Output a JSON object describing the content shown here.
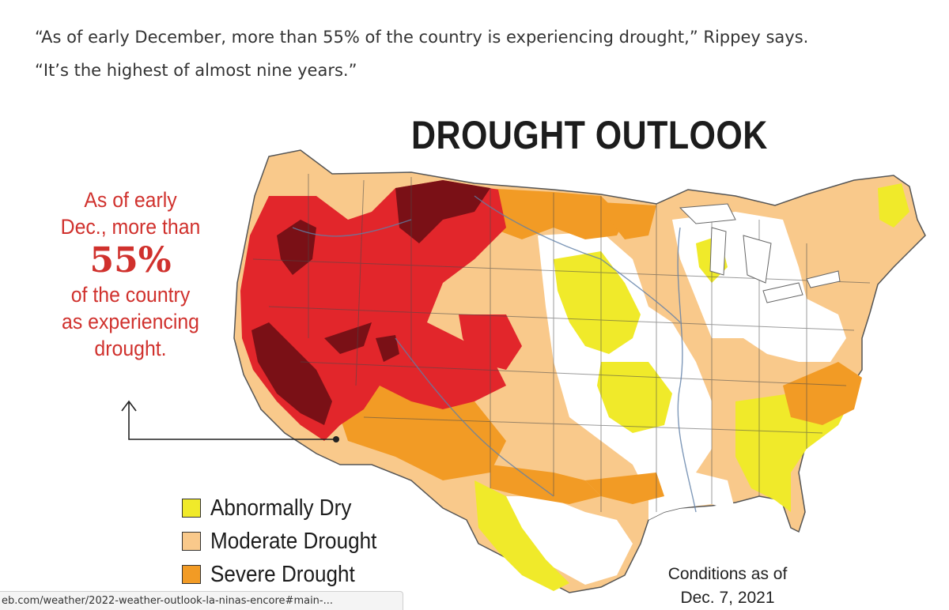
{
  "article": {
    "quote_line1": "“As of early December, more than 55% of the country is experiencing drought,” Rippey says.",
    "quote_line2": "“It’s the highest of almost nine years.”"
  },
  "map": {
    "title": "DROUGHT OUTLOOK",
    "callout": {
      "line1": "As of early",
      "line2": "Dec., more than",
      "percent": "55%",
      "line3": "of the country",
      "line4": "as experiencing",
      "line5": "drought."
    },
    "legend": [
      {
        "label": "Abnormally Dry",
        "color": "#f0ea2a"
      },
      {
        "label": "Moderate Drought",
        "color": "#f9c98b"
      },
      {
        "label": "Severe Drought",
        "color": "#f29b25"
      }
    ],
    "conditions_line1": "Conditions as of",
    "conditions_line2": "Dec. 7, 2021",
    "colors": {
      "exceptional": "#7a1016",
      "extreme": "#e2262b",
      "severe": "#f29b25",
      "moderate": "#f9c98b",
      "abnormally_dry": "#f0ea2a",
      "none": "#ffffff",
      "callout_red": "#d0312d"
    }
  },
  "browser": {
    "status_url": "eb.com/weather/2022-weather-outlook-la-ninas-encore#main-..."
  }
}
